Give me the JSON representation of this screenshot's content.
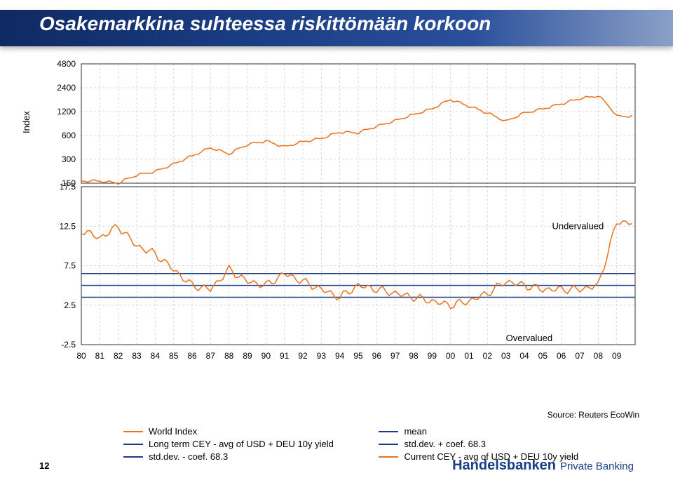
{
  "page": {
    "title": "Osakemarkkina suhteessa riskittömään korkoon",
    "page_number": "12",
    "source": "Source: Reuters EcoWin",
    "logo_main": "Handelsbanken",
    "logo_sub": "Private Banking"
  },
  "colors": {
    "header_gradient_start": "#0f2a63",
    "header_gradient_end": "#8aa0c6",
    "series_world_index": "#e8721e",
    "series_cey": "#e8721e",
    "series_band": "#1b3e86",
    "gridline": "#d9d9d9",
    "axis_text": "#000000",
    "background": "#ffffff"
  },
  "top_chart": {
    "type": "line",
    "y_axis_label": "Index",
    "y_ticks": [
      150,
      300,
      600,
      1200,
      2400,
      4800
    ],
    "y_scale": "log",
    "x_ticks": [
      "80",
      "81",
      "82",
      "83",
      "84",
      "85",
      "86",
      "87",
      "88",
      "89",
      "90",
      "91",
      "92",
      "93",
      "94",
      "95",
      "96",
      "97",
      "98",
      "99",
      "00",
      "01",
      "02",
      "03",
      "04",
      "05",
      "06",
      "07",
      "08",
      "09"
    ],
    "line_color": "#e8721e",
    "line_width": 1.5,
    "grid_color": "#d9d9d9",
    "data_years": [
      1980,
      1981,
      1982,
      1983,
      1984,
      1985,
      1986,
      1987,
      1988,
      1989,
      1990,
      1991,
      1992,
      1993,
      1994,
      1995,
      1996,
      1997,
      1998,
      1999,
      2000,
      2001,
      2002,
      2003,
      2004,
      2005,
      2006,
      2007,
      2008,
      2009
    ],
    "data_values": [
      160,
      160,
      150,
      190,
      210,
      260,
      330,
      420,
      350,
      460,
      510,
      430,
      500,
      550,
      660,
      650,
      780,
      920,
      1100,
      1300,
      1700,
      1400,
      1150,
      900,
      1150,
      1300,
      1500,
      1750,
      1900,
      1050
    ]
  },
  "bottom_chart": {
    "type": "line",
    "y_ticks": [
      -2.5,
      2.5,
      7.5,
      12.5,
      17.5
    ],
    "y_scale": "linear",
    "x_ticks": [
      "80",
      "81",
      "82",
      "83",
      "84",
      "85",
      "86",
      "87",
      "88",
      "89",
      "90",
      "91",
      "92",
      "93",
      "94",
      "95",
      "96",
      "97",
      "98",
      "99",
      "00",
      "01",
      "02",
      "03",
      "04",
      "05",
      "06",
      "07",
      "08",
      "09"
    ],
    "line_color": "#e8721e",
    "line_width": 1.5,
    "band_color": "#1b3e86",
    "band_mean": 5.0,
    "band_upper": 6.5,
    "band_lower": 3.5,
    "annotations": {
      "undervalued": {
        "text": "Undervalued",
        "x_year": 2005.5,
        "y": 12.5
      },
      "overvalued": {
        "text": "Overvalued",
        "x_year": 2003,
        "y": -1.7
      }
    },
    "data_years": [
      1980,
      1981,
      1982,
      1983,
      1984,
      1985,
      1986,
      1987,
      1988,
      1989,
      1990,
      1991,
      1992,
      1993,
      1994,
      1995,
      1996,
      1997,
      1998,
      1999,
      2000,
      2001,
      2002,
      2003,
      2004,
      2005,
      2006,
      2007,
      2008,
      2009
    ],
    "data_values": [
      12,
      11,
      12.5,
      10,
      9,
      7,
      5,
      4.5,
      7,
      5.5,
      5,
      6.5,
      5.5,
      4.5,
      3.5,
      5,
      4.5,
      4,
      3.5,
      3,
      2.5,
      3,
      4,
      5.5,
      5,
      4.5,
      4.5,
      4.5,
      5,
      13
    ]
  },
  "legend": {
    "items_left": [
      {
        "color": "#e8721e",
        "label": "World Index"
      },
      {
        "color": "#1b3e86",
        "label": "Long term CEY - avg of USD + DEU 10y yield"
      },
      {
        "color": "#1b3e86",
        "label": "std.dev. - coef. 68.3"
      }
    ],
    "items_right": [
      {
        "color": "#1b3e86",
        "label": "mean"
      },
      {
        "color": "#1b3e86",
        "label": "std.dev. + coef. 68.3"
      },
      {
        "color": "#e8721e",
        "label": "Current CEY - avg of USD + DEU 10y yield"
      }
    ]
  }
}
